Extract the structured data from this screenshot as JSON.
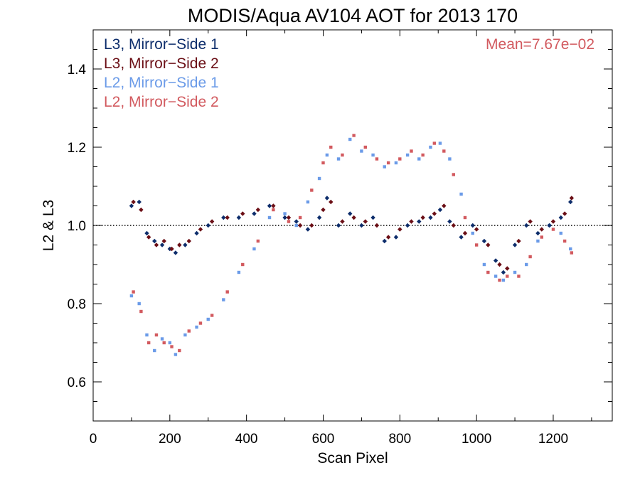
{
  "chart_data": {
    "type": "scatter",
    "title": "MODIS/Aqua AV104 AOT for 2013 170",
    "xlabel": "Scan Pixel",
    "ylabel": "L2 & L3",
    "xlim": [
      0,
      1354
    ],
    "ylim": [
      0.5,
      1.5
    ],
    "x_ticks": [
      0,
      200,
      400,
      600,
      800,
      1000,
      1200
    ],
    "x_tick_labels": [
      "0",
      "200",
      "400",
      "600",
      "800",
      "1000",
      "1200"
    ],
    "y_ticks": [
      0.6,
      0.8,
      1.0,
      1.2,
      1.4
    ],
    "y_tick_labels": [
      "0.6",
      "0.8",
      "1.0",
      "1.2",
      "1.4"
    ],
    "reference_line": 1.0,
    "annotation": "Mean=7.67e−02",
    "legend_position": "top-left",
    "series": [
      {
        "name": "L3, Mirror−Side 1",
        "color": "#0d2d6b",
        "marker": "diamond",
        "x": [
          100,
          120,
          140,
          160,
          180,
          200,
          215,
          240,
          270,
          300,
          340,
          380,
          420,
          460,
          500,
          530,
          560,
          590,
          610,
          640,
          670,
          700,
          730,
          760,
          790,
          820,
          850,
          880,
          905,
          930,
          960,
          990,
          1020,
          1050,
          1070,
          1100,
          1130,
          1160,
          1190,
          1220,
          1245
        ],
        "y": [
          1.05,
          1.06,
          0.98,
          0.96,
          0.95,
          0.94,
          0.93,
          0.95,
          0.98,
          1.0,
          1.02,
          1.02,
          1.03,
          1.05,
          1.02,
          1.01,
          0.99,
          1.02,
          1.07,
          1.0,
          1.03,
          1.0,
          1.02,
          0.96,
          0.97,
          1.0,
          1.01,
          1.02,
          1.04,
          1.01,
          0.97,
          1.0,
          0.96,
          0.91,
          0.88,
          0.95,
          1.0,
          0.98,
          1.0,
          1.02,
          1.06
        ]
      },
      {
        "name": "L3, Mirror−Side 2",
        "color": "#6b0f16",
        "marker": "diamond",
        "x": [
          105,
          125,
          145,
          165,
          185,
          205,
          225,
          250,
          280,
          310,
          350,
          390,
          430,
          470,
          510,
          540,
          570,
          600,
          620,
          650,
          680,
          710,
          740,
          770,
          800,
          830,
          860,
          890,
          915,
          940,
          970,
          1000,
          1030,
          1060,
          1080,
          1110,
          1140,
          1170,
          1200,
          1230,
          1248
        ],
        "y": [
          1.06,
          1.04,
          0.97,
          0.95,
          0.96,
          0.94,
          0.95,
          0.96,
          0.99,
          1.01,
          1.02,
          1.03,
          1.04,
          1.05,
          1.02,
          1.0,
          1.0,
          1.04,
          1.06,
          1.01,
          1.02,
          1.01,
          1.0,
          0.97,
          0.99,
          1.01,
          1.02,
          1.03,
          1.05,
          1.0,
          0.98,
          0.99,
          0.95,
          0.9,
          0.89,
          0.96,
          1.01,
          0.99,
          1.01,
          1.03,
          1.07
        ]
      },
      {
        "name": "L2, Mirror−Side 1",
        "color": "#6b9be8",
        "marker": "square",
        "x": [
          100,
          120,
          140,
          160,
          180,
          200,
          215,
          240,
          270,
          300,
          340,
          380,
          420,
          460,
          500,
          530,
          560,
          590,
          610,
          640,
          670,
          700,
          730,
          760,
          790,
          820,
          850,
          880,
          905,
          930,
          960,
          990,
          1020,
          1050,
          1070,
          1100,
          1130,
          1160,
          1190,
          1220,
          1245
        ],
        "y": [
          0.82,
          0.8,
          0.72,
          0.68,
          0.71,
          0.7,
          0.67,
          0.72,
          0.74,
          0.76,
          0.81,
          0.88,
          0.94,
          1.02,
          1.03,
          1.0,
          1.06,
          1.12,
          1.18,
          1.17,
          1.22,
          1.19,
          1.18,
          1.15,
          1.16,
          1.18,
          1.17,
          1.2,
          1.21,
          1.17,
          1.08,
          0.98,
          0.9,
          0.87,
          0.86,
          0.88,
          0.9,
          0.96,
          1.0,
          0.98,
          0.94
        ]
      },
      {
        "name": "L2, Mirror−Side 2",
        "color": "#d25a5f",
        "marker": "square",
        "x": [
          105,
          125,
          145,
          165,
          185,
          205,
          225,
          250,
          280,
          310,
          350,
          390,
          430,
          470,
          510,
          540,
          570,
          600,
          620,
          650,
          680,
          710,
          740,
          770,
          800,
          830,
          860,
          890,
          915,
          940,
          970,
          1000,
          1030,
          1060,
          1080,
          1110,
          1140,
          1170,
          1200,
          1230,
          1248
        ],
        "y": [
          0.83,
          0.78,
          0.7,
          0.72,
          0.7,
          0.69,
          0.68,
          0.73,
          0.75,
          0.77,
          0.83,
          0.9,
          0.96,
          1.04,
          1.01,
          1.02,
          1.09,
          1.16,
          1.2,
          1.18,
          1.23,
          1.2,
          1.17,
          1.16,
          1.17,
          1.19,
          1.18,
          1.21,
          1.19,
          1.13,
          1.02,
          0.95,
          0.88,
          0.86,
          0.87,
          0.87,
          0.92,
          0.97,
          0.99,
          0.96,
          0.93
        ]
      }
    ]
  }
}
